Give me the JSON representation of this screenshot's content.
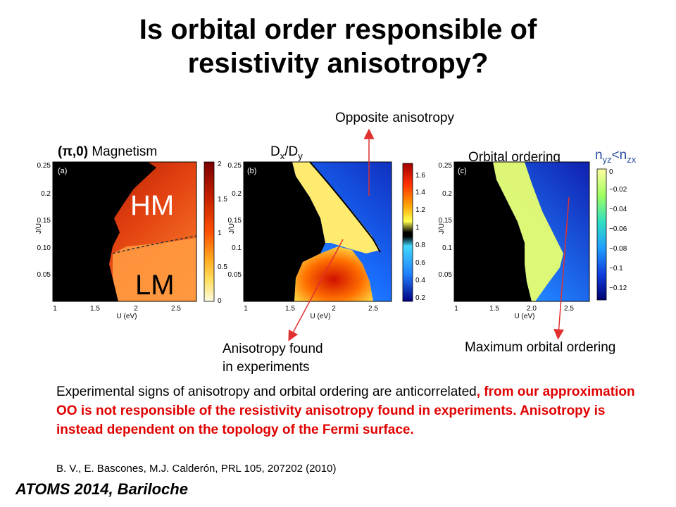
{
  "title": {
    "line1": "Is orbital order responsible of",
    "line2": "resistivity anisotropy?"
  },
  "annotations": {
    "opposite": "Opposite anisotropy",
    "found_line1": "Anisotropy found",
    "found_line2": "in experiments",
    "max_oo": "Maximum orbital ordering"
  },
  "panels": {
    "a": {
      "header_bold": "(π,0)",
      "header_rest": " Magnetism",
      "tag": "(a)",
      "region_hm": "HM",
      "region_lm": "LM",
      "colorbar_ticks": [
        "2",
        "1.5",
        "1",
        "0.5",
        "0"
      ]
    },
    "b": {
      "header_base": "D",
      "header_sub1": "x",
      "header_mid": "/D",
      "header_sub2": "y",
      "tag": "(b)",
      "yticks": [
        "0.25",
        "0.2",
        "0.15",
        "0.1",
        "0.05"
      ],
      "xticks": [
        "1",
        "1.5",
        "2",
        "2.5"
      ],
      "colorbar_ticks": [
        "1.6",
        "1.4",
        "1.2",
        "1",
        "0.8",
        "0.6",
        "0.4",
        "0.2"
      ]
    },
    "c": {
      "header": "Orbital ordering",
      "ineq_a": "n",
      "ineq_a_sub": "yz",
      "ineq_op": "<n",
      "ineq_b_sub": "zx",
      "tag": "(c)",
      "yticks": [
        "0.25",
        "0.2",
        "0.15",
        "0.1",
        "0.05"
      ],
      "xticks": [
        "1",
        "1.5",
        "2.0",
        "2.5"
      ],
      "colorbar_ticks": [
        "0",
        "−0.02",
        "−0.04",
        "−0.06",
        "−0.08",
        "−0.1",
        "−0.12"
      ]
    },
    "a_yticks": [
      "0.25",
      "0.2",
      "0.15",
      "0.10",
      "0.05"
    ],
    "a_xticks": [
      "1",
      "1.5",
      "2",
      "2.5"
    ],
    "ylabel": "J/U",
    "xlabel": "U (eV)"
  },
  "conclusion": {
    "black": "Experimental signs of anisotropy and orbital ordering are anticorrelated",
    "red": ", from our approximation OO is not responsible of the resistivity anisotropy found in experiments. Anisotropy is instead dependent on the topology of the Fermi surface."
  },
  "reference": "B. V., E. Bascones, M.J. Calderón, PRL 105, 207202 (2010)",
  "footer": "ATOMS 2014, Bariloche",
  "colors": {
    "accent_red": "#e00000",
    "arrow": "#e03030"
  }
}
